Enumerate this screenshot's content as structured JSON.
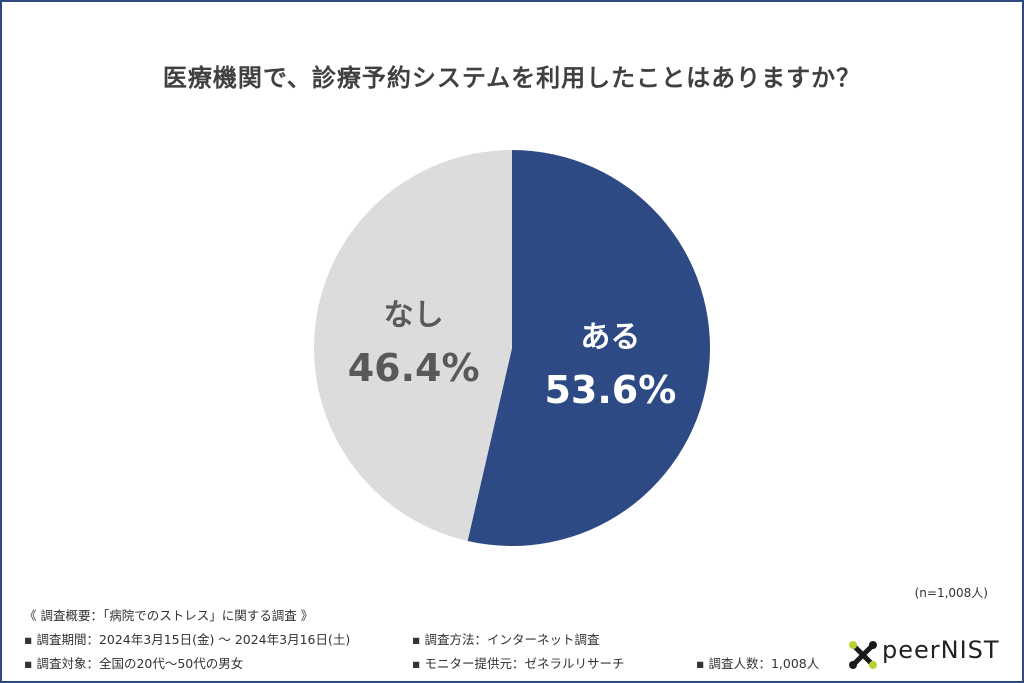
{
  "title": "医療機関で、診療予約システムを利用したことはありますか？",
  "chart_data": {
    "type": "pie",
    "title": "医療機関で、診療予約システムを利用したことはありますか？",
    "slices": [
      {
        "label": "ある",
        "value": 53.6,
        "display": "53.6%",
        "color": "#2d4a84",
        "text_color": "#ffffff"
      },
      {
        "label": "なし",
        "value": 46.4,
        "display": "46.4%",
        "color": "#dcdcdc",
        "text_color": "#595959"
      }
    ],
    "start": "12 o'clock, clockwise",
    "sample_size": "(n=1,008人)"
  },
  "notes": {
    "heading": "《 調査概要：「病院でのストレス」に関する調査 》",
    "period": "▪ 調査期間：2024年3月15日(金) 〜 2024年3月16日(土)",
    "method": "▪ 調査方法：インターネット調査",
    "target": "▪ 調査対象：全国の20代〜50代の男女",
    "provider": "▪ モニター提供元：ゼネラルリサーチ",
    "count": "▪ 調査人数：1,008人"
  },
  "logo": {
    "text": "peerNIST",
    "icon": "x-mark-icon",
    "colors": [
      "#1a1a1a",
      "#b5d334"
    ]
  }
}
